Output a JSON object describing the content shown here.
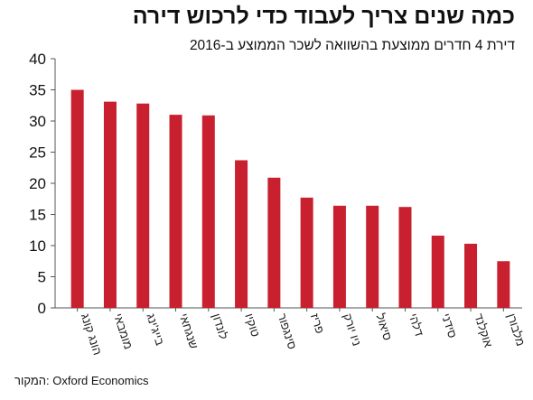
{
  "chart_data": {
    "type": "bar",
    "title": "כמה שנים צריך לעבוד כדי לרכוש דירה",
    "subtitle": "דירת 4 חדרים ממוצעת בהשוואה לשכר הממוצע ב-2016",
    "source": "המקור: Oxford Economics",
    "categories": [
      "הונג קונג",
      "מומבאי",
      "בייג'ינג",
      "שנגחאי",
      "לונדון",
      "טוקיו",
      "סינגפור",
      "פריז",
      "ניו יורק",
      "סיאול",
      "דלהי",
      "סידני",
      "אוקלנד",
      "מלבורן"
    ],
    "values": [
      35.0,
      33.1,
      32.8,
      31.0,
      30.9,
      23.7,
      20.9,
      17.7,
      16.4,
      16.4,
      16.2,
      11.6,
      10.3,
      7.5
    ],
    "ylim": [
      0,
      40
    ],
    "yticks": [
      0,
      5,
      10,
      15,
      20,
      25,
      30,
      35,
      40
    ],
    "bar_color": "#c8202f",
    "grid": false,
    "legend": "none"
  }
}
